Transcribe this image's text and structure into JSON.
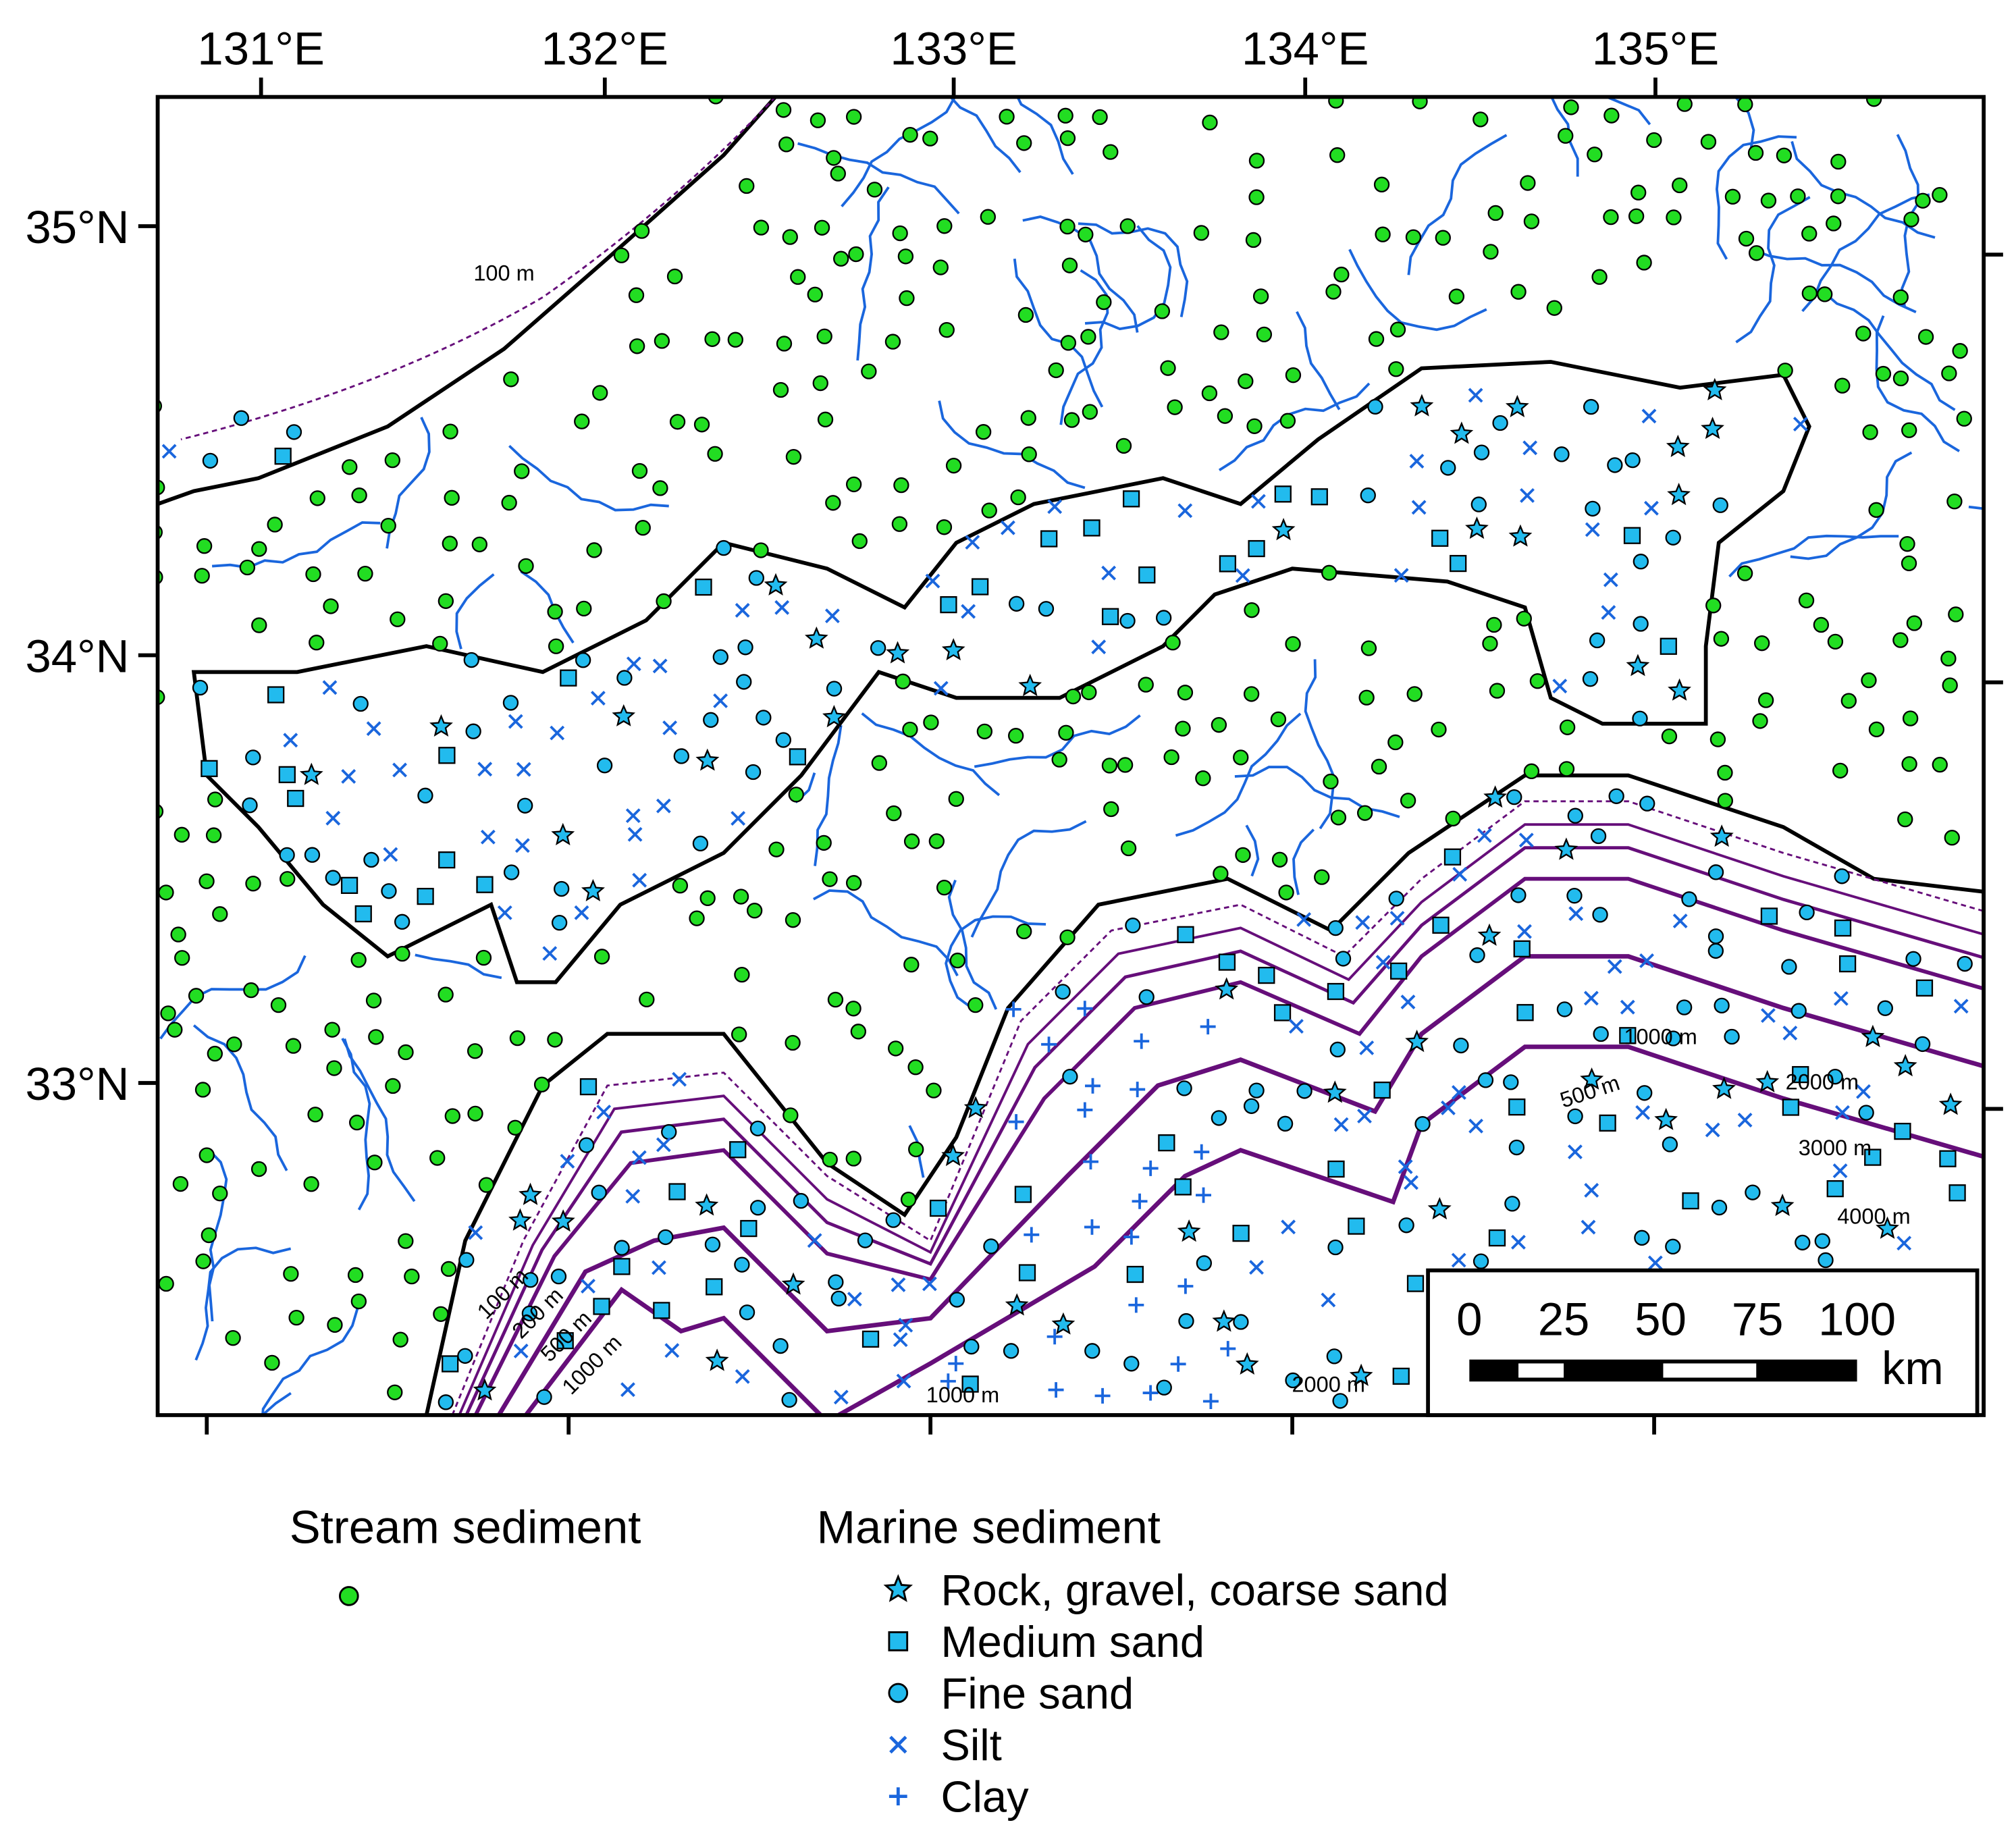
{
  "map": {
    "longitude_labels": [
      "131°E",
      "132°E",
      "133°E",
      "134°E",
      "135°E"
    ],
    "latitude_labels": [
      "35°N",
      "34°N",
      "33°N"
    ],
    "contour_labels": [
      "100 m",
      "1000 m",
      "500 m",
      "2000 m",
      "3000 m",
      "4000 m",
      "1000 m",
      "2000 m",
      "100 m",
      "200 m",
      "500 m",
      "1000 m"
    ],
    "scale_bar": {
      "labels": [
        "0",
        "25",
        "50",
        "75",
        "100"
      ],
      "unit": "km"
    },
    "legend": {
      "stream": {
        "title": "Stream sediment"
      },
      "marine": {
        "title": "Marine sediment",
        "items": [
          "Rock, gravel, coarse sand",
          "Medium sand",
          "Fine sand",
          "Silt",
          "Clay"
        ]
      }
    }
  }
}
